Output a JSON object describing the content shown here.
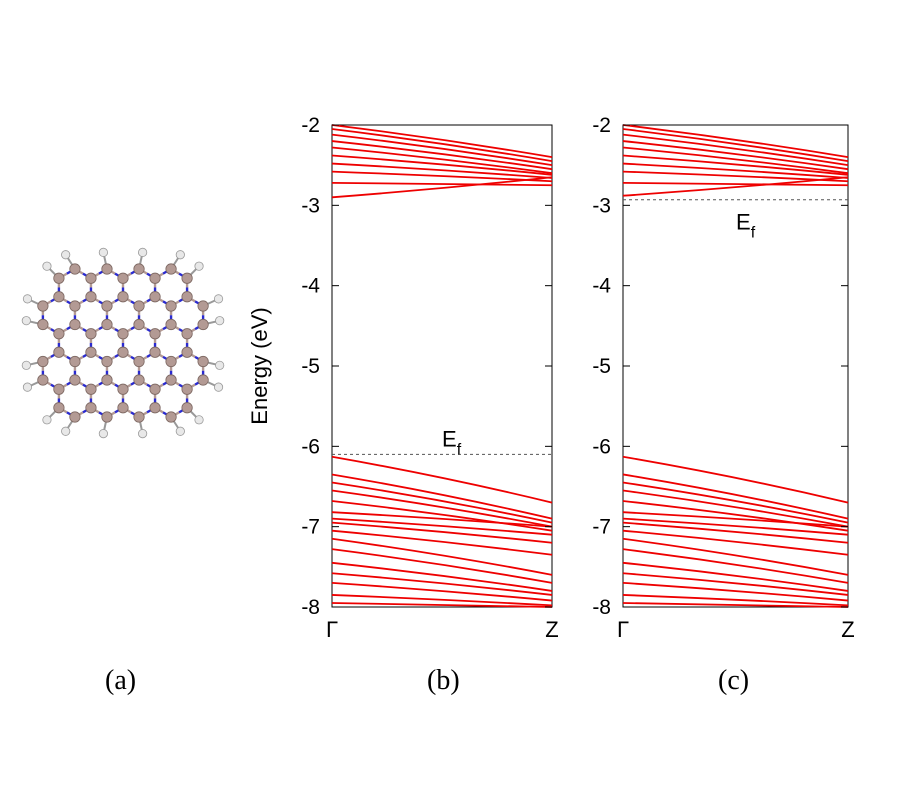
{
  "panel_labels": {
    "a": "(a)",
    "b": "(b)",
    "c": "(c)"
  },
  "colors": {
    "bands": "#ee0000",
    "fermi": "#555555",
    "boron": "#b39a94",
    "nitrogen": "#2a2ad0",
    "hydrogen": "#e8e8e8"
  },
  "molecule": {
    "description_icon": "hexagonal-bn-flake-icon"
  },
  "chart_data": [
    {
      "type": "line",
      "panel": "(b)",
      "ylabel": "Energy (eV)",
      "ylim": [
        -8,
        -2
      ],
      "yticks": [
        "-2",
        "-3",
        "-4",
        "-5",
        "-6",
        "-7",
        "-8"
      ],
      "xticks": [
        "Γ",
        "Z"
      ],
      "fermi_level": -6.1,
      "fermi_label": "E",
      "fermi_sub": "f",
      "series": [
        {
          "values": [
            -2.0,
            -2.4
          ]
        },
        {
          "values": [
            -2.05,
            -2.45
          ]
        },
        {
          "values": [
            -2.12,
            -2.5
          ]
        },
        {
          "values": [
            -2.2,
            -2.55
          ]
        },
        {
          "values": [
            -2.28,
            -2.6
          ]
        },
        {
          "values": [
            -2.38,
            -2.62
          ]
        },
        {
          "values": [
            -2.48,
            -2.66
          ]
        },
        {
          "values": [
            -2.58,
            -2.7
          ]
        },
        {
          "values": [
            -2.72,
            -2.75
          ]
        },
        {
          "values": [
            -2.9,
            -2.65
          ]
        },
        {
          "values": [
            -6.13,
            -6.7
          ]
        },
        {
          "values": [
            -6.35,
            -6.9
          ]
        },
        {
          "values": [
            -6.45,
            -6.95
          ]
        },
        {
          "values": [
            -6.55,
            -7.0
          ]
        },
        {
          "values": [
            -6.68,
            -7.05
          ]
        },
        {
          "values": [
            -6.82,
            -7.0
          ]
        },
        {
          "values": [
            -6.9,
            -7.1
          ]
        },
        {
          "values": [
            -6.95,
            -7.2
          ]
        },
        {
          "values": [
            -7.05,
            -7.35
          ]
        },
        {
          "values": [
            -7.15,
            -7.6
          ]
        },
        {
          "values": [
            -7.28,
            -7.7
          ]
        },
        {
          "values": [
            -7.45,
            -7.8
          ]
        },
        {
          "values": [
            -7.58,
            -7.85
          ]
        },
        {
          "values": [
            -7.7,
            -7.92
          ]
        },
        {
          "values": [
            -7.85,
            -7.98
          ]
        },
        {
          "values": [
            -7.95,
            -8.0
          ]
        }
      ]
    },
    {
      "type": "line",
      "panel": "(c)",
      "ylim": [
        -8,
        -2
      ],
      "yticks": [
        "-2",
        "-3",
        "-4",
        "-5",
        "-6",
        "-7",
        "-8"
      ],
      "xticks": [
        "Γ",
        "Z"
      ],
      "fermi_level": -2.93,
      "fermi_label": "E",
      "fermi_sub": "f",
      "series": [
        {
          "values": [
            -2.0,
            -2.4
          ]
        },
        {
          "values": [
            -2.05,
            -2.45
          ]
        },
        {
          "values": [
            -2.12,
            -2.5
          ]
        },
        {
          "values": [
            -2.2,
            -2.55
          ]
        },
        {
          "values": [
            -2.28,
            -2.6
          ]
        },
        {
          "values": [
            -2.38,
            -2.62
          ]
        },
        {
          "values": [
            -2.48,
            -2.66
          ]
        },
        {
          "values": [
            -2.58,
            -2.7
          ]
        },
        {
          "values": [
            -2.72,
            -2.75
          ]
        },
        {
          "values": [
            -2.88,
            -2.65
          ]
        },
        {
          "values": [
            -6.13,
            -6.7
          ]
        },
        {
          "values": [
            -6.35,
            -6.9
          ]
        },
        {
          "values": [
            -6.45,
            -6.95
          ]
        },
        {
          "values": [
            -6.55,
            -7.0
          ]
        },
        {
          "values": [
            -6.68,
            -7.05
          ]
        },
        {
          "values": [
            -6.82,
            -7.0
          ]
        },
        {
          "values": [
            -6.9,
            -7.1
          ]
        },
        {
          "values": [
            -6.95,
            -7.2
          ]
        },
        {
          "values": [
            -7.05,
            -7.35
          ]
        },
        {
          "values": [
            -7.15,
            -7.6
          ]
        },
        {
          "values": [
            -7.28,
            -7.7
          ]
        },
        {
          "values": [
            -7.45,
            -7.8
          ]
        },
        {
          "values": [
            -7.58,
            -7.85
          ]
        },
        {
          "values": [
            -7.7,
            -7.92
          ]
        },
        {
          "values": [
            -7.85,
            -7.98
          ]
        },
        {
          "values": [
            -7.95,
            -8.0
          ]
        }
      ]
    }
  ]
}
